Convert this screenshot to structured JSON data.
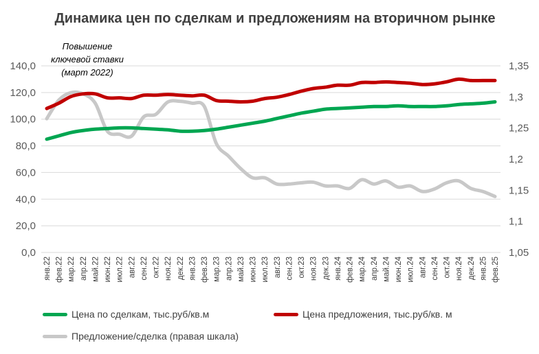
{
  "chart_data": {
    "type": "line",
    "title": "Динамика цен по сделкам и предложениям на вторичном рынке",
    "annotation": "Повышение ключевой ставки (март 2022)",
    "categories": [
      "янв.22",
      "фев.22",
      "мар.22",
      "апр.22",
      "май.22",
      "июн.22",
      "июл.22",
      "авг.22",
      "сен.22",
      "окт.22",
      "ноя.22",
      "дек.22",
      "янв.23",
      "фев.23",
      "мар.23",
      "апр.23",
      "май.23",
      "июн.23",
      "июл.23",
      "авг.23",
      "сен.23",
      "окт.23",
      "ноя.23",
      "дек.23",
      "янв.24",
      "фев.24",
      "мар.24",
      "апр.24",
      "май.24",
      "июн.24",
      "июл.24",
      "авг.24",
      "сен.24",
      "окт.24",
      "ноя.24",
      "дек.24",
      "янв.25",
      "фев.25"
    ],
    "y_left": {
      "range": [
        0,
        140
      ],
      "ticks": [
        "0,0",
        "20,0",
        "40,0",
        "60,0",
        "80,0",
        "100,0",
        "120,0",
        "140,0"
      ]
    },
    "y_right": {
      "range": [
        1.05,
        1.35
      ],
      "ticks": [
        "1,05",
        "1,1",
        "1,15",
        "1,2",
        "1,25",
        "1,3",
        "1,35"
      ]
    },
    "grid": true,
    "legend_position": "bottom",
    "series": [
      {
        "name": "Цена по сделкам, тыс.руб/кв.м",
        "axis": "left",
        "color": "#00A651",
        "values": [
          85,
          87.5,
          90,
          91.5,
          92.5,
          93,
          93.5,
          93.5,
          93,
          92.5,
          92,
          91,
          91,
          91.5,
          92.5,
          94,
          95.5,
          97,
          98.5,
          100.5,
          102.5,
          104.5,
          106,
          107.5,
          108,
          108.5,
          109,
          109.5,
          109.5,
          110,
          109.5,
          109.5,
          109.5,
          110,
          111,
          111.5,
          112,
          113
        ]
      },
      {
        "name": "Цена предложения, тыс.руб/кв. м",
        "axis": "left",
        "color": "#C00000",
        "values": [
          108,
          112,
          117,
          119,
          119,
          116,
          116,
          115.5,
          118,
          118,
          118.5,
          118,
          117.5,
          118,
          114,
          113.5,
          113,
          113.5,
          115.5,
          116.5,
          118.5,
          121,
          123,
          124,
          125.5,
          125.5,
          127.5,
          127.5,
          128,
          127.5,
          127,
          126,
          126.5,
          128,
          130,
          129,
          129,
          129
        ]
      },
      {
        "name": "Предложение/сделка (правая шкала)",
        "axis": "right",
        "color": "#C8C8C8",
        "values": [
          1.265,
          1.295,
          1.307,
          1.305,
          1.29,
          1.245,
          1.24,
          1.237,
          1.268,
          1.272,
          1.292,
          1.293,
          1.29,
          1.285,
          1.225,
          1.205,
          1.185,
          1.17,
          1.17,
          1.16,
          1.16,
          1.162,
          1.163,
          1.157,
          1.157,
          1.153,
          1.167,
          1.16,
          1.165,
          1.155,
          1.157,
          1.148,
          1.152,
          1.162,
          1.165,
          1.153,
          1.148,
          1.14
        ]
      }
    ]
  }
}
